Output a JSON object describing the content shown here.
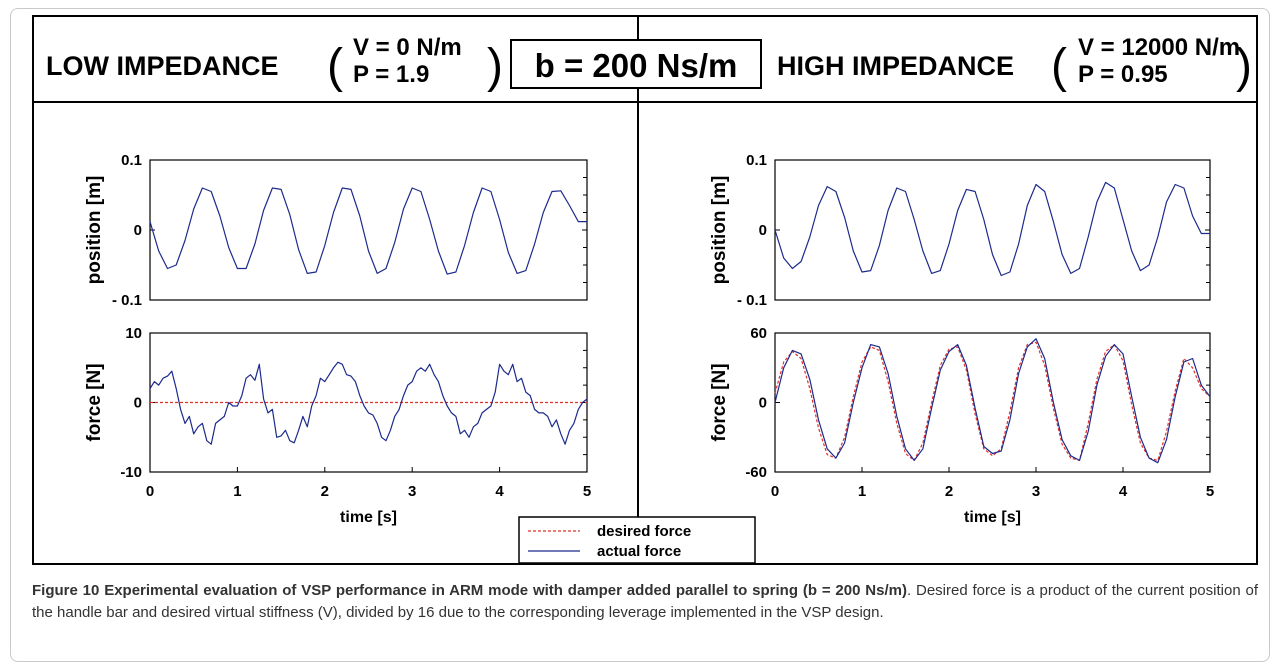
{
  "header": {
    "left_title": "LOW IMPEDANCE",
    "left_params": [
      "V = 0 N/m",
      "P = 1.9"
    ],
    "center_box": "b = 200 Ns/m",
    "right_title": "HIGH IMPEDANCE",
    "right_params": [
      "V = 12000 N/m",
      "P = 0.95"
    ]
  },
  "legend": {
    "items": [
      "desired force",
      "actual force"
    ],
    "colors": {
      "desired": "#e0302a",
      "actual": "#1c2a8c"
    }
  },
  "caption": {
    "lead": "Figure 10 Experimental evaluation of VSP performance in ARM mode with damper added parallel to spring (b = 200 Ns/m)",
    "body": ". Desired force is a product of the current position of the handle bar and desired virtual stiffness (V), divided by 16 due to the corresponding leverage implemented in the VSP design."
  },
  "chart_data": [
    {
      "type": "line",
      "panel": "low-position",
      "ylabel": "position [m]",
      "yticks": [
        "0.1",
        "0",
        "- 0.1"
      ],
      "ylim": [
        -0.1,
        0.1
      ],
      "xlim": [
        0,
        5
      ],
      "series": [
        {
          "x": [
            0,
            0.1,
            0.2,
            0.3,
            0.4,
            0.5,
            0.6,
            0.7,
            0.8,
            0.9,
            1.0,
            1.1,
            1.2,
            1.3,
            1.4,
            1.5,
            1.6,
            1.7,
            1.8,
            1.9,
            2.0,
            2.1,
            2.2,
            2.3,
            2.4,
            2.5,
            2.6,
            2.7,
            2.8,
            2.9,
            3.0,
            3.1,
            3.2,
            3.3,
            3.4,
            3.5,
            3.6,
            3.7,
            3.8,
            3.9,
            4.0,
            4.1,
            4.2,
            4.3,
            4.4,
            4.5,
            4.6,
            4.7,
            4.8,
            4.9,
            5.0
          ],
          "y": [
            0.012,
            -0.03,
            -0.055,
            -0.05,
            -0.015,
            0.03,
            0.06,
            0.055,
            0.02,
            -0.025,
            -0.055,
            -0.055,
            -0.02,
            0.028,
            0.06,
            0.058,
            0.022,
            -0.028,
            -0.062,
            -0.06,
            -0.022,
            0.025,
            0.06,
            0.058,
            0.02,
            -0.03,
            -0.062,
            -0.055,
            -0.018,
            0.03,
            0.06,
            0.055,
            0.015,
            -0.03,
            -0.063,
            -0.06,
            -0.022,
            0.025,
            0.06,
            0.055,
            0.015,
            -0.032,
            -0.062,
            -0.058,
            -0.02,
            0.025,
            0.055,
            0.056,
            0.035,
            0.012,
            0.012
          ]
        }
      ]
    },
    {
      "type": "line",
      "panel": "low-force",
      "ylabel": "force [N]",
      "xlabel": "time [s]",
      "yticks": [
        "10",
        "0",
        "-10"
      ],
      "xticks": [
        "0",
        "1",
        "2",
        "3",
        "4",
        "5"
      ],
      "ylim": [
        -10,
        10
      ],
      "xlim": [
        0,
        5
      ],
      "series": [
        {
          "name": "desired force",
          "x": [
            0,
            5
          ],
          "y": [
            0,
            0
          ]
        },
        {
          "name": "actual force",
          "x": [
            0,
            0.05,
            0.1,
            0.15,
            0.2,
            0.25,
            0.3,
            0.35,
            0.4,
            0.45,
            0.5,
            0.55,
            0.6,
            0.65,
            0.7,
            0.75,
            0.8,
            0.85,
            0.9,
            0.95,
            1.0,
            1.05,
            1.1,
            1.15,
            1.2,
            1.25,
            1.3,
            1.35,
            1.4,
            1.45,
            1.5,
            1.55,
            1.6,
            1.65,
            1.7,
            1.75,
            1.8,
            1.85,
            1.9,
            1.95,
            2.0,
            2.05,
            2.1,
            2.15,
            2.2,
            2.25,
            2.3,
            2.35,
            2.4,
            2.45,
            2.5,
            2.55,
            2.6,
            2.65,
            2.7,
            2.75,
            2.8,
            2.85,
            2.9,
            2.95,
            3.0,
            3.05,
            3.1,
            3.15,
            3.2,
            3.25,
            3.3,
            3.35,
            3.4,
            3.45,
            3.5,
            3.55,
            3.6,
            3.65,
            3.7,
            3.75,
            3.8,
            3.85,
            3.9,
            3.95,
            4.0,
            4.05,
            4.1,
            4.15,
            4.2,
            4.25,
            4.3,
            4.35,
            4.4,
            4.45,
            4.5,
            4.55,
            4.6,
            4.65,
            4.7,
            4.75,
            4.8,
            4.85,
            4.9,
            4.95,
            5.0
          ],
          "y": [
            2,
            3,
            2.5,
            3.5,
            3.8,
            4.5,
            2,
            -1,
            -3,
            -2,
            -4.5,
            -3.5,
            -3,
            -5.5,
            -6,
            -3,
            -2.5,
            -2,
            0,
            -0.5,
            -0.5,
            1,
            3.5,
            4,
            3.2,
            5.5,
            0.5,
            -1.5,
            -1,
            -5,
            -4.8,
            -4,
            -5.5,
            -5.8,
            -4,
            -2,
            -3.5,
            -0.5,
            1,
            3.5,
            3,
            4,
            5,
            5.8,
            5.5,
            4,
            3.8,
            3,
            1,
            -0.5,
            -1.5,
            -1.8,
            -3,
            -5,
            -5.5,
            -4,
            -2,
            -1,
            1,
            2.5,
            3,
            4.5,
            5,
            4.5,
            5.5,
            4,
            3,
            1,
            -0.5,
            -1.5,
            -2,
            -4.5,
            -4,
            -5,
            -3.5,
            -3,
            -1.5,
            -1,
            -0.5,
            1.5,
            5.5,
            4.5,
            4,
            5.5,
            3,
            3.5,
            1.5,
            1,
            -1,
            -1.5,
            -1.5,
            -2,
            -3.5,
            -2.5,
            -4.5,
            -6,
            -4,
            -3,
            -1,
            0,
            0.5
          ]
        }
      ]
    },
    {
      "type": "line",
      "panel": "high-position",
      "ylabel": "position [m]",
      "yticks": [
        "0.1",
        "0",
        "- 0.1"
      ],
      "ylim": [
        -0.1,
        0.1
      ],
      "xlim": [
        0,
        5
      ],
      "series": [
        {
          "x": [
            0,
            0.1,
            0.2,
            0.3,
            0.4,
            0.5,
            0.6,
            0.7,
            0.8,
            0.9,
            1.0,
            1.1,
            1.2,
            1.3,
            1.4,
            1.5,
            1.6,
            1.7,
            1.8,
            1.9,
            2.0,
            2.1,
            2.2,
            2.3,
            2.4,
            2.5,
            2.6,
            2.7,
            2.8,
            2.9,
            3.0,
            3.1,
            3.2,
            3.3,
            3.4,
            3.5,
            3.6,
            3.7,
            3.8,
            3.9,
            4.0,
            4.1,
            4.2,
            4.3,
            4.4,
            4.5,
            4.6,
            4.7,
            4.8,
            4.9,
            5.0
          ],
          "y": [
            0,
            -0.04,
            -0.055,
            -0.045,
            -0.01,
            0.035,
            0.062,
            0.055,
            0.018,
            -0.03,
            -0.06,
            -0.058,
            -0.022,
            0.028,
            0.06,
            0.055,
            0.015,
            -0.03,
            -0.062,
            -0.058,
            -0.02,
            0.028,
            0.058,
            0.055,
            0.015,
            -0.035,
            -0.065,
            -0.06,
            -0.02,
            0.035,
            0.065,
            0.055,
            0.012,
            -0.035,
            -0.062,
            -0.055,
            -0.01,
            0.04,
            0.068,
            0.06,
            0.015,
            -0.03,
            -0.058,
            -0.05,
            -0.01,
            0.04,
            0.065,
            0.06,
            0.02,
            -0.005,
            -0.005
          ]
        }
      ]
    },
    {
      "type": "line",
      "panel": "high-force",
      "ylabel": "force [N]",
      "xlabel": "time [s]",
      "yticks": [
        "60",
        "0",
        "-60"
      ],
      "xticks": [
        "0",
        "1",
        "2",
        "3",
        "4",
        "5"
      ],
      "ylim": [
        -60,
        60
      ],
      "xlim": [
        0,
        5
      ],
      "series": [
        {
          "name": "desired force",
          "x": [
            0,
            0.1,
            0.2,
            0.3,
            0.4,
            0.5,
            0.6,
            0.7,
            0.8,
            0.9,
            1.0,
            1.1,
            1.2,
            1.3,
            1.4,
            1.5,
            1.6,
            1.7,
            1.8,
            1.9,
            2.0,
            2.1,
            2.2,
            2.3,
            2.4,
            2.5,
            2.6,
            2.7,
            2.8,
            2.9,
            3.0,
            3.1,
            3.2,
            3.3,
            3.4,
            3.5,
            3.6,
            3.7,
            3.8,
            3.9,
            4.0,
            4.1,
            4.2,
            4.3,
            4.4,
            4.5,
            4.6,
            4.7,
            4.8,
            4.9,
            5.0
          ],
          "y": [
            8,
            35,
            44,
            38,
            12,
            -22,
            -45,
            -48,
            -30,
            5,
            35,
            48,
            45,
            18,
            -18,
            -44,
            -50,
            -35,
            0,
            32,
            46,
            48,
            28,
            -10,
            -40,
            -46,
            -40,
            -8,
            30,
            50,
            52,
            32,
            -5,
            -36,
            -48,
            -50,
            -18,
            20,
            44,
            50,
            36,
            -2,
            -35,
            -48,
            -50,
            -25,
            10,
            38,
            30,
            12,
            5
          ]
        },
        {
          "name": "actual force",
          "x": [
            0,
            0.1,
            0.2,
            0.3,
            0.4,
            0.5,
            0.6,
            0.7,
            0.8,
            0.9,
            1.0,
            1.1,
            1.2,
            1.3,
            1.4,
            1.5,
            1.6,
            1.7,
            1.8,
            1.9,
            2.0,
            2.1,
            2.2,
            2.3,
            2.4,
            2.5,
            2.6,
            2.7,
            2.8,
            2.9,
            3.0,
            3.1,
            3.2,
            3.3,
            3.4,
            3.5,
            3.6,
            3.7,
            3.8,
            3.9,
            4.0,
            4.1,
            4.2,
            4.3,
            4.4,
            4.5,
            4.6,
            4.7,
            4.8,
            4.9,
            5.0
          ],
          "y": [
            0,
            30,
            45,
            42,
            20,
            -15,
            -40,
            -48,
            -35,
            0,
            30,
            50,
            48,
            25,
            -12,
            -40,
            -50,
            -40,
            -5,
            28,
            44,
            50,
            32,
            -5,
            -38,
            -44,
            -42,
            -15,
            25,
            48,
            55,
            38,
            0,
            -32,
            -46,
            -50,
            -25,
            15,
            40,
            50,
            42,
            5,
            -30,
            -48,
            -52,
            -32,
            5,
            35,
            38,
            15,
            5
          ]
        }
      ]
    }
  ]
}
